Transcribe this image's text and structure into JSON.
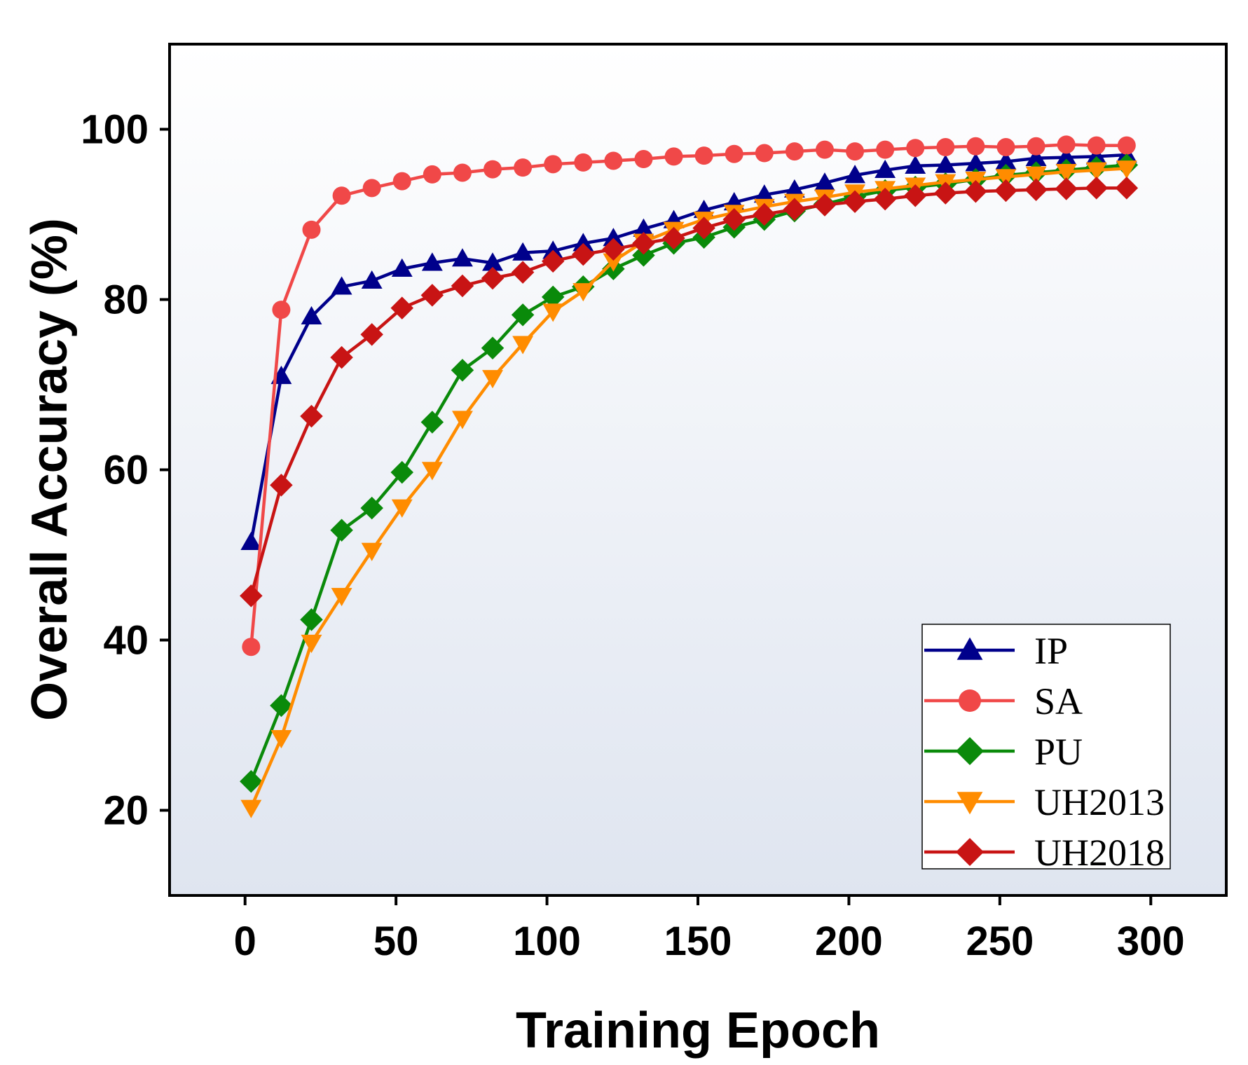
{
  "chart_data": {
    "type": "line",
    "title": "",
    "xlabel": "Training Epoch",
    "ylabel": "Overall Accuracy (%)",
    "xlim": [
      -25,
      325
    ],
    "ylim": [
      10,
      110
    ],
    "xticks": [
      0,
      50,
      100,
      150,
      200,
      250,
      300
    ],
    "yticks": [
      20,
      40,
      60,
      80,
      100
    ],
    "grid": false,
    "legend_position": "bottom-right",
    "background": {
      "top": "#ffffff",
      "bottom": "#dfe5f0"
    },
    "x": [
      2,
      12,
      22,
      32,
      42,
      52,
      62,
      72,
      82,
      92,
      102,
      112,
      122,
      132,
      142,
      152,
      162,
      172,
      182,
      192,
      202,
      212,
      222,
      232,
      242,
      252,
      262,
      272,
      282,
      292
    ],
    "series": [
      {
        "name": "IP",
        "color": "#00008b",
        "marker": "triangle-up",
        "values": [
          51.5,
          71,
          78,
          81.5,
          82.2,
          83.6,
          84.3,
          84.8,
          84.3,
          85.5,
          85.7,
          86.6,
          87.2,
          88.3,
          89.3,
          90.5,
          91.4,
          92.3,
          92.9,
          93.7,
          94.6,
          95.2,
          95.7,
          95.8,
          96,
          96.2,
          96.6,
          96.7,
          96.8,
          97
        ]
      },
      {
        "name": "SA",
        "color": "#f04848",
        "marker": "circle",
        "values": [
          39.2,
          78.8,
          88.2,
          92.2,
          93.1,
          93.9,
          94.7,
          94.9,
          95.3,
          95.5,
          95.9,
          96.1,
          96.3,
          96.5,
          96.8,
          96.9,
          97.1,
          97.2,
          97.4,
          97.6,
          97.4,
          97.6,
          97.8,
          97.9,
          98,
          97.9,
          98,
          98.2,
          98.1,
          98.1
        ]
      },
      {
        "name": "PU",
        "color": "#0a8a0a",
        "marker": "diamond",
        "values": [
          23.4,
          32.3,
          42.4,
          52.9,
          55.5,
          59.7,
          65.6,
          71.7,
          74.3,
          78.2,
          80.3,
          81.5,
          83.6,
          85.2,
          86.6,
          87.3,
          88.5,
          89.4,
          90.4,
          91.2,
          92.1,
          92.8,
          93.2,
          93.6,
          94.1,
          94.6,
          94.9,
          95.2,
          95.5,
          95.8
        ]
      },
      {
        "name": "UH2013",
        "color": "#ff8c00",
        "marker": "triangle-down",
        "values": [
          20.3,
          28.5,
          39.7,
          45.2,
          50.5,
          55.6,
          60,
          66,
          70.8,
          74.8,
          78.6,
          81,
          84.5,
          86.8,
          88.2,
          89.4,
          90.2,
          90.9,
          91.5,
          92,
          92.6,
          93,
          93.4,
          93.8,
          94.1,
          94.4,
          94.7,
          95,
          95.2,
          95.4
        ]
      },
      {
        "name": "UH2018",
        "color": "#c81414",
        "marker": "diamond",
        "values": [
          45.2,
          58.2,
          66.3,
          73.2,
          75.9,
          79,
          80.5,
          81.6,
          82.5,
          83.2,
          84.5,
          85.3,
          85.9,
          86.6,
          87.2,
          88.4,
          89.4,
          90,
          90.6,
          91.1,
          91.5,
          91.8,
          92.2,
          92.5,
          92.7,
          92.8,
          92.9,
          93,
          93.1,
          93.1
        ]
      }
    ]
  }
}
